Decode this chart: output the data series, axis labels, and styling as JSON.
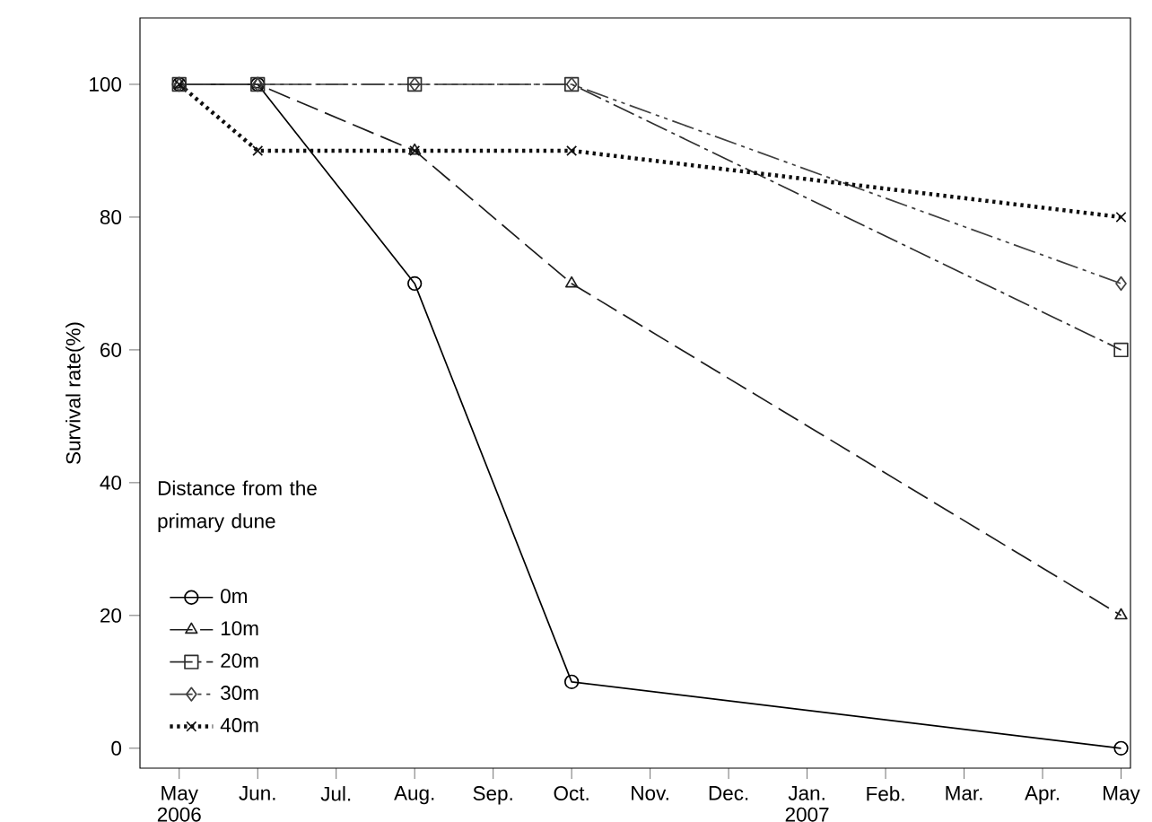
{
  "chart_data": {
    "type": "line",
    "ylabel": "Survival rate(%)",
    "legend_title": "Distance from the primary dune",
    "categories": [
      "May 2006",
      "Jun.",
      "Jul.",
      "Aug.",
      "Sep.",
      "Oct.",
      "Nov.",
      "Dec.",
      "Jan. 2007",
      "Feb.",
      "Mar.",
      "Apr.",
      "May"
    ],
    "series": [
      {
        "name": "0m",
        "color": "#000000",
        "marker": "circle",
        "line_style": "solid",
        "values": [
          100,
          100,
          null,
          70,
          null,
          10,
          null,
          null,
          null,
          null,
          null,
          null,
          0
        ]
      },
      {
        "name": "10m",
        "color": "#1c1c1c",
        "marker": "triangle",
        "line_style": "dashed",
        "values": [
          100,
          100,
          null,
          90,
          null,
          70,
          null,
          null,
          null,
          null,
          null,
          null,
          20
        ]
      },
      {
        "name": "20m",
        "color": "#2e2e2e",
        "marker": "square",
        "line_style": "dashdot",
        "values": [
          100,
          100,
          null,
          100,
          null,
          100,
          null,
          null,
          null,
          null,
          null,
          null,
          60
        ]
      },
      {
        "name": "30m",
        "color": "#404040",
        "marker": "diamond",
        "line_style": "dashdotdot",
        "values": [
          100,
          100,
          null,
          100,
          null,
          100,
          null,
          null,
          null,
          null,
          null,
          null,
          70
        ]
      },
      {
        "name": "40m",
        "color": "#0e0e0e",
        "marker": "cross",
        "line_style": "dotted",
        "values": [
          100,
          90,
          null,
          90,
          null,
          90,
          null,
          null,
          null,
          null,
          null,
          null,
          80
        ]
      }
    ],
    "ylim": [
      -3,
      110
    ],
    "yticks": [
      0,
      20,
      40,
      60,
      80,
      100
    ],
    "grid": false,
    "legend": "bottom left"
  }
}
